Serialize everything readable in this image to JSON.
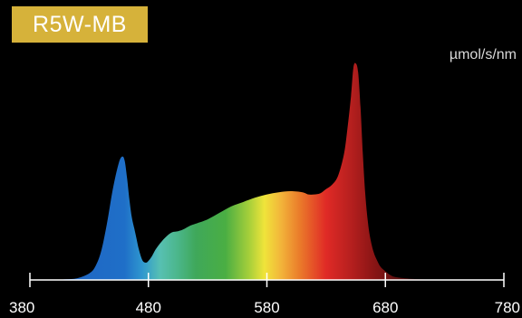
{
  "chart_data": {
    "type": "area",
    "title": "R5W-MB",
    "ylabel": "µmol/s/nm",
    "xlabel": "",
    "xlim": [
      380,
      780
    ],
    "ylim": [
      0,
      1.0
    ],
    "x_ticks": [
      380,
      480,
      580,
      680,
      780
    ],
    "grid": false,
    "legend": "none",
    "x": [
      400,
      410,
      420,
      430,
      435,
      440,
      445,
      450,
      455,
      458,
      460,
      462,
      464,
      466,
      468,
      470,
      472,
      475,
      478,
      480,
      483,
      486,
      490,
      495,
      500,
      505,
      510,
      515,
      520,
      530,
      540,
      550,
      560,
      570,
      580,
      590,
      600,
      610,
      615,
      620,
      625,
      630,
      635,
      640,
      645,
      648,
      651,
      653,
      655,
      657,
      659,
      661,
      663,
      665,
      667,
      670,
      673,
      676,
      680,
      685,
      690,
      700,
      710,
      720,
      730,
      740,
      750,
      760,
      770
    ],
    "values": [
      0,
      0.003,
      0.008,
      0.03,
      0.06,
      0.13,
      0.26,
      0.42,
      0.54,
      0.57,
      0.55,
      0.47,
      0.37,
      0.29,
      0.24,
      0.19,
      0.14,
      0.09,
      0.08,
      0.088,
      0.11,
      0.14,
      0.17,
      0.2,
      0.22,
      0.225,
      0.235,
      0.25,
      0.26,
      0.28,
      0.31,
      0.34,
      0.36,
      0.38,
      0.395,
      0.405,
      0.41,
      0.405,
      0.395,
      0.395,
      0.4,
      0.42,
      0.44,
      0.48,
      0.58,
      0.7,
      0.85,
      0.98,
      1.0,
      0.96,
      0.8,
      0.58,
      0.4,
      0.28,
      0.2,
      0.13,
      0.09,
      0.06,
      0.04,
      0.02,
      0.012,
      0.006,
      0.003,
      0.001,
      0,
      0,
      0,
      0,
      0
    ],
    "colors": {
      "badge": "#d6b23a",
      "gradient_stops": [
        {
          "wl": 380,
          "color": "#1f5fbf"
        },
        {
          "wl": 460,
          "color": "#1f6fc8"
        },
        {
          "wl": 475,
          "color": "#2f98cf"
        },
        {
          "wl": 490,
          "color": "#57c0b2"
        },
        {
          "wl": 505,
          "color": "#4bb68a"
        },
        {
          "wl": 520,
          "color": "#3fa85a"
        },
        {
          "wl": 545,
          "color": "#4aae43"
        },
        {
          "wl": 565,
          "color": "#a6cf3a"
        },
        {
          "wl": 578,
          "color": "#f0e43a"
        },
        {
          "wl": 592,
          "color": "#f2b43a"
        },
        {
          "wl": 608,
          "color": "#ea7a2a"
        },
        {
          "wl": 630,
          "color": "#e02a26"
        },
        {
          "wl": 650,
          "color": "#b8201f"
        },
        {
          "wl": 670,
          "color": "#8a1515"
        },
        {
          "wl": 700,
          "color": "#4a0e0e"
        },
        {
          "wl": 740,
          "color": "#1a0505"
        },
        {
          "wl": 780,
          "color": "#0a0202"
        }
      ]
    }
  }
}
